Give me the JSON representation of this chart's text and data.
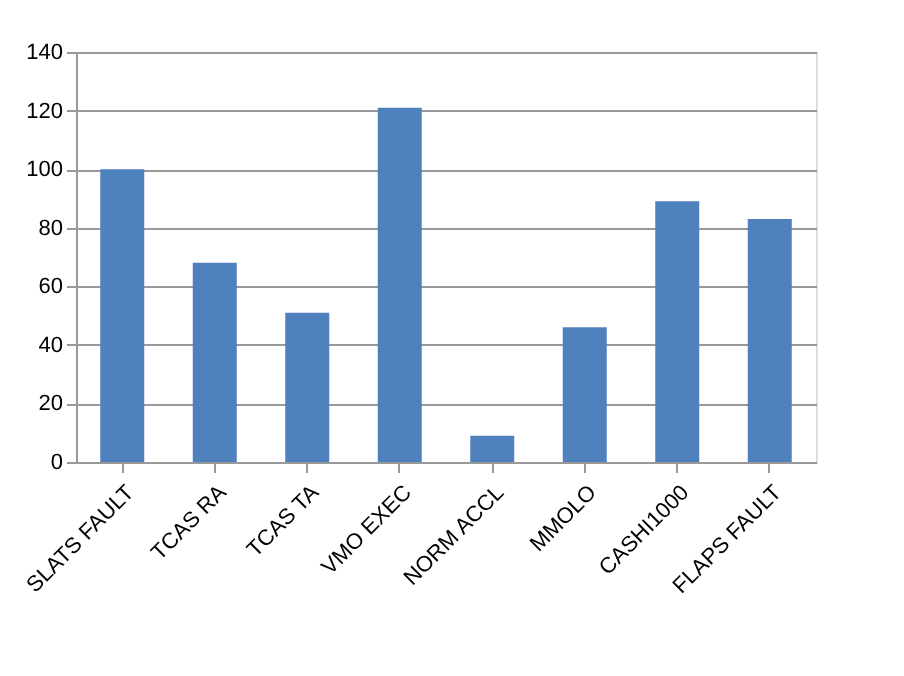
{
  "chart_data": {
    "type": "bar",
    "categories": [
      "SLATS FAULT",
      "TCAS RA",
      "TCAS TA",
      "VMO EXEC",
      "NORM ACCL",
      "MMOLO",
      "CASHI1000",
      "FLAPS FAULT"
    ],
    "values": [
      100,
      68,
      51,
      121,
      9,
      46,
      89,
      83
    ],
    "color": "#4f81bd",
    "ylim": [
      0,
      140
    ],
    "yticks": [
      0,
      20,
      40,
      60,
      80,
      100,
      120,
      140
    ],
    "grid": "y"
  }
}
